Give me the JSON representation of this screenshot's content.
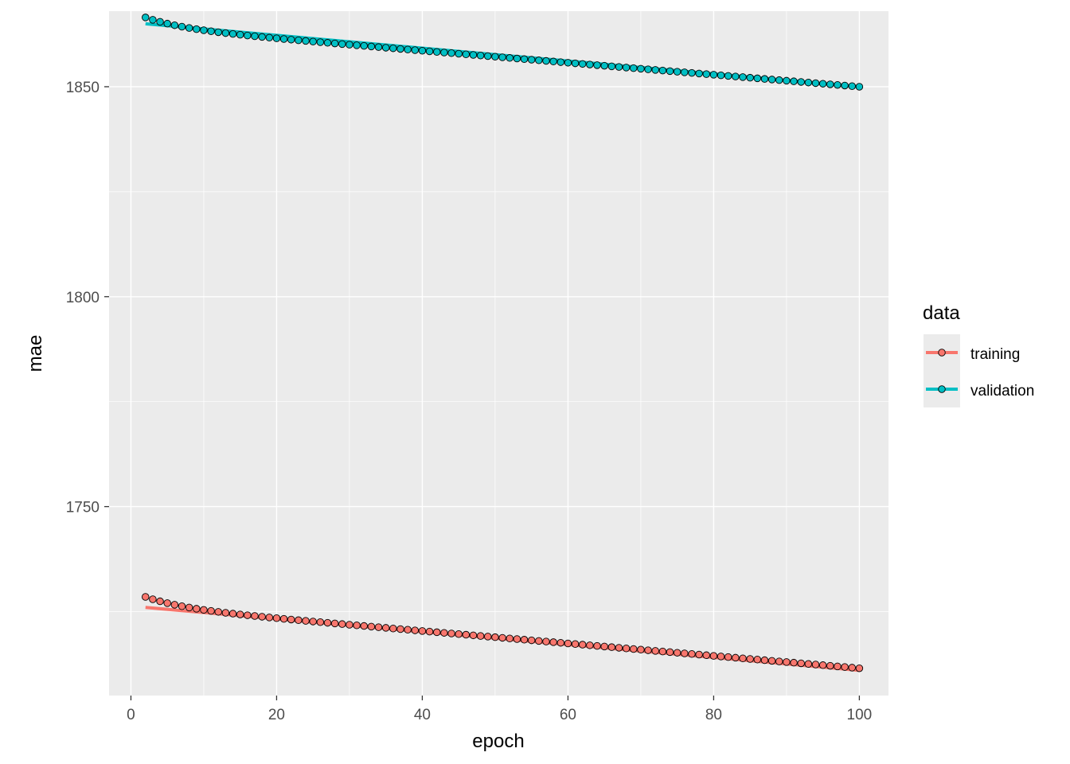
{
  "chart_data": {
    "type": "line",
    "xlabel": "epoch",
    "ylabel": "mae",
    "xlim": [
      -3,
      104
    ],
    "ylim": [
      1705,
      1868
    ],
    "x_ticks": [
      0,
      20,
      40,
      60,
      80,
      100
    ],
    "y_ticks": [
      1750,
      1800,
      1850
    ],
    "grid": true,
    "legend": {
      "title": "data",
      "position": "right"
    },
    "series": [
      {
        "name": "training",
        "color": "#F8766D",
        "points": {
          "x_start": 2,
          "x_end": 100,
          "y_start": 1728.5,
          "y_end": 1711.5,
          "curve": [
            2.5,
            0.18
          ]
        },
        "smooth": {
          "x_start": 2,
          "x_end": 100,
          "y_start": 1726,
          "y_end": 1711
        }
      },
      {
        "name": "validation",
        "color": "#00BFC4",
        "points": {
          "x_start": 2,
          "x_end": 100,
          "y_start": 1866.5,
          "y_end": 1850,
          "curve": [
            2.5,
            0.18
          ]
        },
        "smooth": {
          "x_start": 2,
          "x_end": 100,
          "y_start": 1865,
          "y_end": 1850
        }
      }
    ]
  }
}
